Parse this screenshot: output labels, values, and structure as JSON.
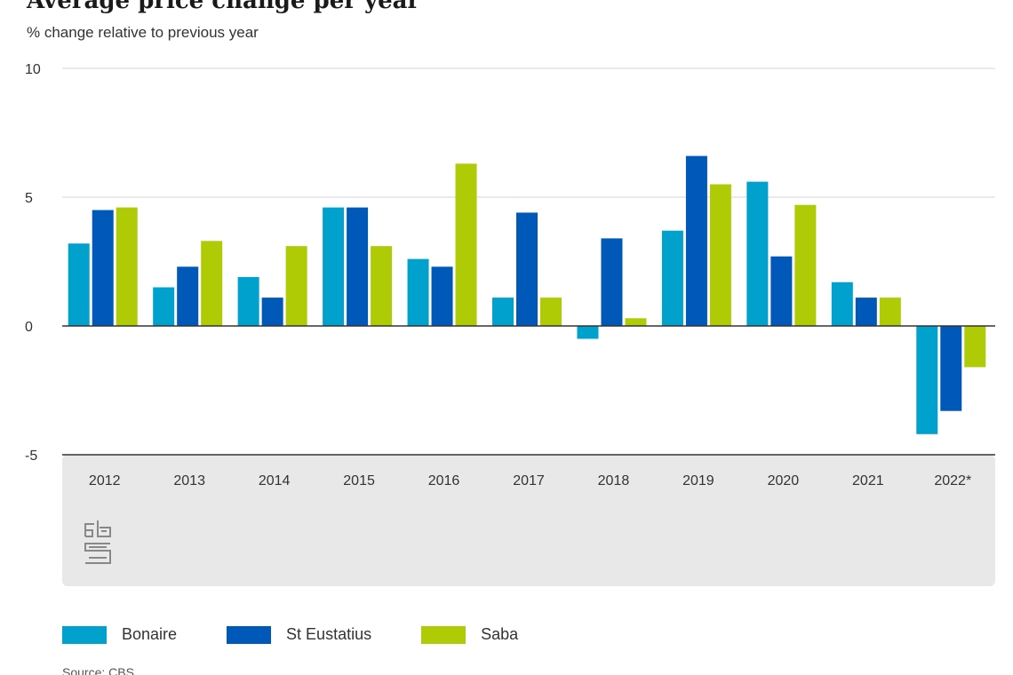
{
  "chart_data": {
    "type": "bar",
    "title": "Average price change per year",
    "subtitle": "% change relative to previous year",
    "categories": [
      "2012",
      "2013",
      "2014",
      "2015",
      "2016",
      "2017",
      "2018",
      "2019",
      "2020",
      "2021",
      "2022*"
    ],
    "series": [
      {
        "name": "Bonaire",
        "color": "#00a1cd",
        "values": [
          3.2,
          1.5,
          1.9,
          4.6,
          2.6,
          1.1,
          -0.5,
          3.7,
          5.6,
          1.7,
          -4.2
        ]
      },
      {
        "name": "St Eustatius",
        "color": "#0058b8",
        "values": [
          4.5,
          2.3,
          1.1,
          4.6,
          2.3,
          4.4,
          3.4,
          6.6,
          2.7,
          1.1,
          -3.3
        ]
      },
      {
        "name": "Saba",
        "color": "#afcb05",
        "values": [
          4.6,
          3.3,
          3.1,
          3.1,
          6.3,
          1.1,
          0.3,
          5.5,
          4.7,
          1.1,
          -1.6
        ]
      }
    ],
    "yticks": [
      "10",
      "5",
      "0",
      "-5"
    ],
    "ylim": [
      -5,
      10
    ],
    "xlabel": "",
    "ylabel": "",
    "grid": true,
    "legend_position": "bottom",
    "source": "Source: CBS"
  },
  "colors": {
    "axis_band": "#e8e8e8",
    "gridline": "#d4d4d4",
    "zero_line": "#333333"
  },
  "icons": {
    "logo": "cbs-logo-icon"
  }
}
